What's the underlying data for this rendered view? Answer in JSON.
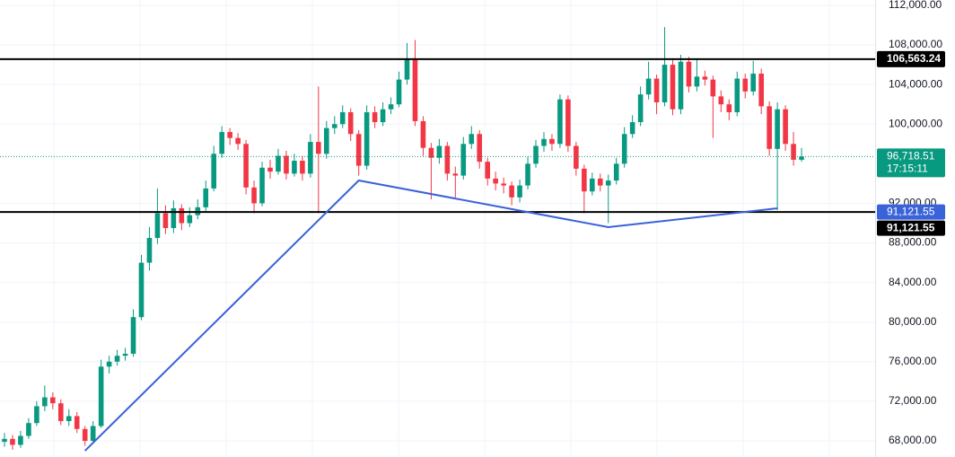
{
  "chart_data": {
    "type": "candlestick",
    "open": [
      67900,
      68200,
      67600,
      68500,
      69800,
      71500,
      72400,
      71800,
      70000,
      70500,
      69200,
      68000,
      69500,
      75500,
      76000,
      76600,
      76800,
      80500,
      86000,
      88500,
      91000,
      89500,
      91500,
      90000,
      90800,
      91600,
      93500,
      97000,
      99200,
      98600,
      98000,
      93600,
      92000,
      95600,
      95200,
      96800,
      95000,
      96300,
      95000,
      98200,
      97000,
      99600,
      100000,
      101200,
      99000,
      95800,
      101200,
      100200,
      101500,
      102000,
      104500,
      106500,
      100300,
      97600,
      96600,
      97800,
      95000,
      94800,
      98000,
      99000,
      96200,
      94500,
      94000,
      93800,
      92600,
      93800,
      96000,
      97800,
      98500,
      98000,
      102500,
      97800,
      95500,
      93200,
      94500,
      93800,
      94300,
      96000,
      99000,
      100200,
      103000,
      104600,
      102200,
      106000,
      101500,
      106300,
      103800,
      104800,
      104500,
      102800,
      102000,
      101200,
      104600,
      103300,
      105100,
      101800,
      97500,
      101500,
      98000,
      96400
    ],
    "high": [
      68800,
      68600,
      69000,
      70300,
      72000,
      73600,
      72900,
      72200,
      71200,
      70900,
      69500,
      70000,
      76200,
      76600,
      77200,
      77400,
      81300,
      86800,
      89600,
      93500,
      91800,
      92300,
      91900,
      91600,
      92400,
      94300,
      97800,
      99800,
      99600,
      99100,
      98400,
      94300,
      96200,
      96400,
      97500,
      97300,
      97000,
      96800,
      99000,
      103800,
      100300,
      100800,
      101900,
      101600,
      99400,
      101900,
      101800,
      102200,
      102700,
      105300,
      108200,
      108500,
      100800,
      98100,
      98500,
      98200,
      95700,
      98700,
      99800,
      99400,
      96600,
      95200,
      94600,
      94200,
      94400,
      96700,
      98400,
      99200,
      99000,
      103000,
      102900,
      98200,
      95900,
      95100,
      95000,
      94900,
      96600,
      99700,
      100900,
      103800,
      106300,
      105000,
      109800,
      106600,
      107000,
      106800,
      106600,
      105400,
      104900,
      103400,
      102500,
      105300,
      105100,
      106400,
      105600,
      102300,
      102200,
      101900,
      99200,
      97600
    ],
    "low": [
      67400,
      67100,
      67300,
      68200,
      69500,
      71000,
      71200,
      69600,
      69500,
      68800,
      67500,
      67800,
      69300,
      74800,
      75600,
      76100,
      76500,
      80200,
      85200,
      87900,
      88900,
      89000,
      89300,
      89600,
      90400,
      91200,
      93200,
      96600,
      97900,
      97400,
      92900,
      91000,
      91700,
      94500,
      94900,
      94400,
      94700,
      94300,
      94600,
      91000,
      96500,
      99000,
      99600,
      98300,
      94800,
      95400,
      99600,
      99800,
      101000,
      101700,
      104000,
      99800,
      96800,
      92400,
      96000,
      94300,
      92600,
      94400,
      97500,
      95500,
      93800,
      93300,
      93000,
      91800,
      92100,
      93400,
      95600,
      97200,
      97300,
      97600,
      97200,
      94800,
      91000,
      92800,
      93200,
      90000,
      93900,
      95600,
      98600,
      99800,
      102500,
      101000,
      101800,
      100900,
      101000,
      103200,
      103300,
      103900,
      98600,
      101200,
      100400,
      100800,
      102600,
      102900,
      101000,
      96800,
      91300,
      97300,
      95800,
      96200
    ],
    "close": [
      68200,
      67600,
      68500,
      69800,
      71500,
      72400,
      71800,
      70000,
      70500,
      69200,
      68000,
      69500,
      75500,
      76000,
      76600,
      76800,
      80500,
      86000,
      88500,
      91000,
      89500,
      91500,
      90000,
      90800,
      91600,
      93500,
      97000,
      99200,
      98600,
      98000,
      93600,
      92000,
      95600,
      95200,
      96800,
      95000,
      96300,
      95000,
      98200,
      97000,
      99600,
      100000,
      101200,
      99000,
      95800,
      101200,
      100200,
      101500,
      102000,
      104500,
      106500,
      100300,
      97600,
      96600,
      97800,
      95000,
      94800,
      98000,
      99000,
      96200,
      94500,
      94000,
      93800,
      92600,
      93800,
      96000,
      97800,
      98500,
      98000,
      102500,
      97800,
      95500,
      93200,
      94500,
      93800,
      94300,
      96000,
      99000,
      100200,
      103000,
      104600,
      102200,
      106000,
      101500,
      106300,
      103800,
      104800,
      104500,
      102800,
      102000,
      101200,
      104600,
      103300,
      105100,
      101800,
      97500,
      101500,
      98000,
      96400,
      96718.51
    ],
    "up_color": "#089981",
    "down_color": "#f23645",
    "ylim": [
      66370,
      112540
    ],
    "yticks": [
      {
        "value": 68000,
        "label": "68,000.00"
      },
      {
        "value": 72000,
        "label": "72,000.00"
      },
      {
        "value": 76000,
        "label": "76,000.00"
      },
      {
        "value": 80000,
        "label": "80,000.00"
      },
      {
        "value": 84000,
        "label": "84,000.00"
      },
      {
        "value": 88000,
        "label": "88,000.00"
      },
      {
        "value": 92000,
        "label": "92,000.00"
      },
      {
        "value": 100000,
        "label": "100,000.00"
      },
      {
        "value": 104000,
        "label": "104,000.00"
      },
      {
        "value": 108000,
        "label": "108,000.00"
      },
      {
        "value": 112000,
        "label": "112,000.00"
      }
    ],
    "grid": true,
    "hlines": [
      {
        "value": 106563.24,
        "label": "106,563.24"
      },
      {
        "value": 91121.55,
        "label": "91,121.55"
      }
    ],
    "last_price": {
      "value": 96718.51,
      "label": "96,718.51"
    },
    "countdown": "17:15:11",
    "trendline": {
      "x": [
        10,
        44,
        75,
        96
      ],
      "y": [
        67000,
        94310,
        89590,
        91500
      ],
      "color": "#3a62d9"
    }
  }
}
